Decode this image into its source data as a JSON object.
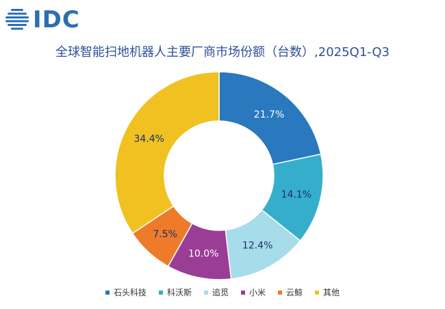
{
  "logo": {
    "text": "IDC"
  },
  "chart_data": {
    "type": "pie",
    "variant": "donut",
    "title": "全球智能扫地机器人主要厂商市场份额（台数）,2025Q1-Q3",
    "legend_position": "bottom",
    "categories": [
      "石头科技",
      "科沃斯",
      "追觅",
      "小米",
      "云鲸",
      "其他"
    ],
    "values": [
      21.7,
      14.1,
      12.4,
      10.0,
      7.5,
      34.4
    ],
    "labels": [
      "21.7%",
      "14.1%",
      "12.4%",
      "10.0%",
      "7.5%",
      "34.4%"
    ],
    "colors": [
      "#2a78bd",
      "#35aecb",
      "#a7dcea",
      "#993d97",
      "#ee7b29",
      "#f0c120"
    ],
    "label_colors": [
      "#ffffff",
      "#1e2d6e",
      "#1e2d6e",
      "#ffffff",
      "#1e2d6e",
      "#1e2d6e"
    ]
  }
}
